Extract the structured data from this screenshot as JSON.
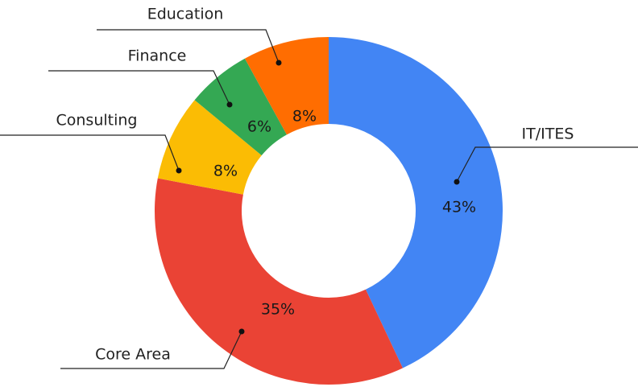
{
  "chart_data": {
    "type": "donut",
    "categories": [
      "IT/ITES",
      "Core Area",
      "Consulting",
      "Finance",
      "Education"
    ],
    "values": [
      43,
      35,
      8,
      6,
      8
    ],
    "value_labels": [
      "43%",
      "35%",
      "8%",
      "6%",
      "8%"
    ],
    "colors": [
      "#4285f4",
      "#ea4335",
      "#fbbc04",
      "#34a853",
      "#ff6d01"
    ]
  }
}
